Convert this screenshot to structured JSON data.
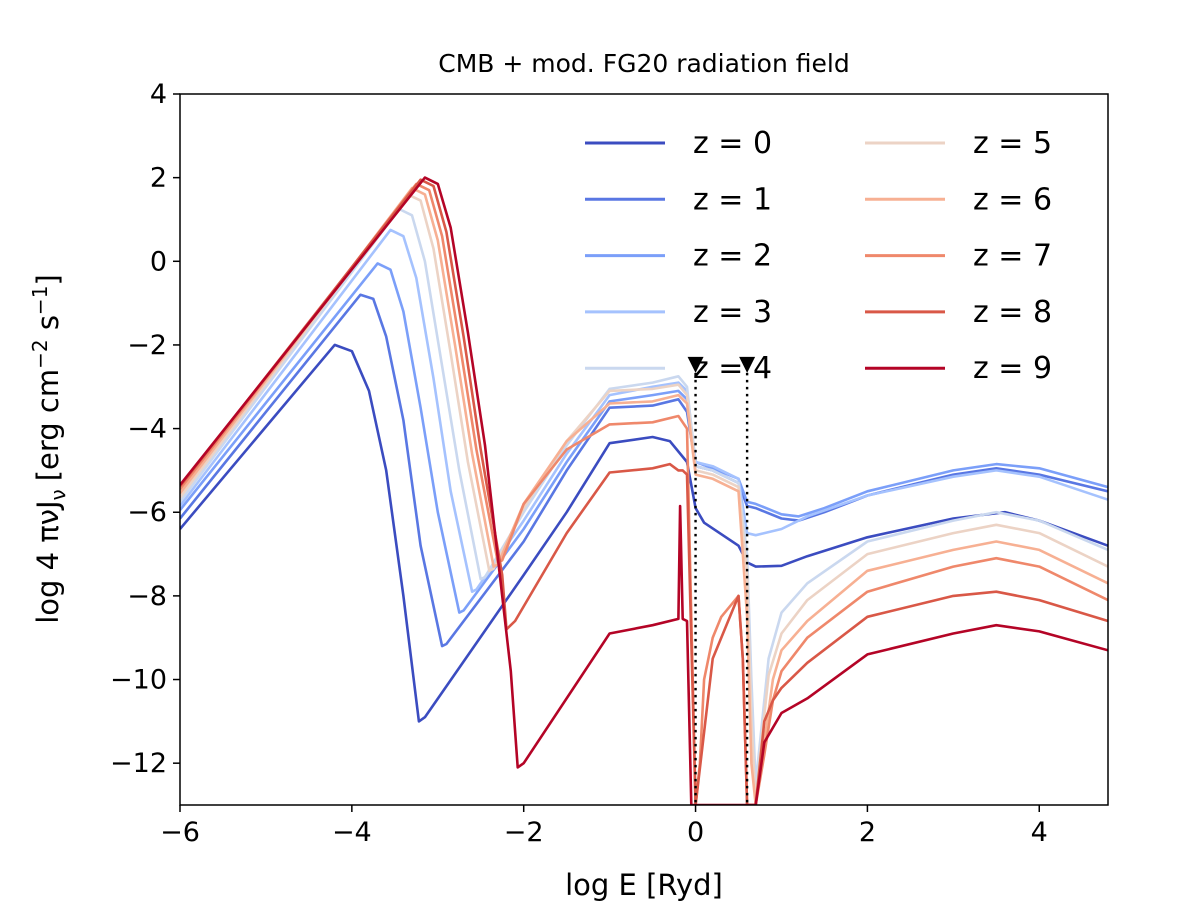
{
  "chart_data": {
    "type": "line",
    "title": "CMB + mod. FG20 radiation field",
    "xlabel": "log E [Ryd]",
    "ylabel": "log 4 πνJ",
    "ylabel_sub": "ν",
    "ylabel_units": "[erg cm",
    "ylabel_exp1": "−2",
    "ylabel_mid": " s",
    "ylabel_exp2": "−1",
    "ylabel_close": "]",
    "xlim": [
      -6,
      4.8
    ],
    "ylim": [
      -13,
      4
    ],
    "xticks": [
      -6,
      -4,
      -2,
      0,
      2,
      4
    ],
    "xtick_labels": [
      "−6",
      "−4",
      "−2",
      "0",
      "2",
      "4"
    ],
    "yticks": [
      4,
      2,
      0,
      -2,
      -4,
      -6,
      -8,
      -10,
      -12
    ],
    "ytick_labels": [
      "4",
      "2",
      "0",
      "−2",
      "−4",
      "−6",
      "−8",
      "−10",
      "−12"
    ],
    "markers": {
      "x": [
        0,
        0.6
      ],
      "y": -2.5,
      "style": "dotted"
    },
    "legend": {
      "location": "upper right",
      "columns": 2
    },
    "series": [
      {
        "name": "z = 0",
        "color": "#3b4cc0",
        "points": [
          [
            -6,
            -6.4
          ],
          [
            -4.2,
            -2.0
          ],
          [
            -4.0,
            -2.15
          ],
          [
            -3.8,
            -3.1
          ],
          [
            -3.6,
            -5.0
          ],
          [
            -3.4,
            -8.0
          ],
          [
            -3.22,
            -11.0
          ],
          [
            -3.15,
            -10.9
          ],
          [
            -2.0,
            -7.5
          ],
          [
            -1.5,
            -6.0
          ],
          [
            -1.0,
            -4.35
          ],
          [
            -0.5,
            -4.2
          ],
          [
            -0.3,
            -4.3
          ],
          [
            -0.1,
            -4.8
          ],
          [
            0.0,
            -5.9
          ],
          [
            0.1,
            -6.25
          ],
          [
            0.5,
            -6.8
          ],
          [
            0.6,
            -7.2
          ],
          [
            0.7,
            -7.3
          ],
          [
            1.0,
            -7.28
          ],
          [
            1.3,
            -7.05
          ],
          [
            2.0,
            -6.6
          ],
          [
            3.0,
            -6.15
          ],
          [
            3.6,
            -6.0
          ],
          [
            4.0,
            -6.2
          ],
          [
            4.8,
            -6.8
          ]
        ]
      },
      {
        "name": "z = 1",
        "color": "#5977e3",
        "points": [
          [
            -6,
            -6.15
          ],
          [
            -3.9,
            -0.8
          ],
          [
            -3.75,
            -0.9
          ],
          [
            -3.6,
            -1.8
          ],
          [
            -3.4,
            -3.8
          ],
          [
            -3.2,
            -6.8
          ],
          [
            -2.95,
            -9.2
          ],
          [
            -2.9,
            -9.15
          ],
          [
            -2.0,
            -6.7
          ],
          [
            -1.5,
            -5.0
          ],
          [
            -1.0,
            -3.5
          ],
          [
            -0.5,
            -3.45
          ],
          [
            -0.2,
            -3.3
          ],
          [
            -0.1,
            -3.6
          ],
          [
            0.0,
            -4.9
          ],
          [
            0.2,
            -5.0
          ],
          [
            0.5,
            -5.3
          ],
          [
            0.6,
            -5.85
          ],
          [
            0.7,
            -5.9
          ],
          [
            1.0,
            -6.15
          ],
          [
            1.2,
            -6.2
          ],
          [
            1.5,
            -6.0
          ],
          [
            2.0,
            -5.6
          ],
          [
            3.0,
            -5.1
          ],
          [
            3.5,
            -4.95
          ],
          [
            4.0,
            -5.1
          ],
          [
            4.8,
            -5.5
          ]
        ]
      },
      {
        "name": "z = 2",
        "color": "#7b9ff9",
        "points": [
          [
            -6,
            -5.95
          ],
          [
            -3.7,
            -0.05
          ],
          [
            -3.55,
            -0.2
          ],
          [
            -3.4,
            -1.2
          ],
          [
            -3.2,
            -3.5
          ],
          [
            -3.0,
            -6.0
          ],
          [
            -2.75,
            -8.4
          ],
          [
            -2.7,
            -8.35
          ],
          [
            -2.0,
            -6.4
          ],
          [
            -1.5,
            -4.8
          ],
          [
            -1.0,
            -3.35
          ],
          [
            -0.5,
            -3.2
          ],
          [
            -0.2,
            -3.1
          ],
          [
            -0.1,
            -3.3
          ],
          [
            0.0,
            -4.8
          ],
          [
            0.2,
            -4.95
          ],
          [
            0.5,
            -5.2
          ],
          [
            0.6,
            -5.75
          ],
          [
            0.7,
            -5.8
          ],
          [
            1.0,
            -6.05
          ],
          [
            1.2,
            -6.1
          ],
          [
            1.5,
            -5.9
          ],
          [
            2.0,
            -5.5
          ],
          [
            3.0,
            -5.0
          ],
          [
            3.5,
            -4.85
          ],
          [
            4.0,
            -4.95
          ],
          [
            4.8,
            -5.4
          ]
        ]
      },
      {
        "name": "z = 3",
        "color": "#a5c2fe",
        "points": [
          [
            -6,
            -5.85
          ],
          [
            -3.55,
            0.75
          ],
          [
            -3.4,
            0.6
          ],
          [
            -3.25,
            -0.4
          ],
          [
            -3.05,
            -2.8
          ],
          [
            -2.85,
            -5.5
          ],
          [
            -2.6,
            -7.9
          ],
          [
            -2.55,
            -7.85
          ],
          [
            -2.0,
            -6.2
          ],
          [
            -1.5,
            -4.6
          ],
          [
            -1.0,
            -3.2
          ],
          [
            -0.5,
            -3.0
          ],
          [
            -0.2,
            -2.9
          ],
          [
            -0.1,
            -3.1
          ],
          [
            0.0,
            -4.8
          ],
          [
            0.2,
            -4.9
          ],
          [
            0.5,
            -5.2
          ],
          [
            0.6,
            -6.5
          ],
          [
            0.7,
            -6.55
          ],
          [
            1.0,
            -6.4
          ],
          [
            1.3,
            -6.1
          ],
          [
            2.0,
            -5.6
          ],
          [
            3.0,
            -5.15
          ],
          [
            3.5,
            -5.0
          ],
          [
            4.0,
            -5.15
          ],
          [
            4.8,
            -5.7
          ]
        ]
      },
      {
        "name": "z = 4",
        "color": "#cad8ef",
        "points": [
          [
            -6,
            -5.75
          ],
          [
            -3.45,
            1.25
          ],
          [
            -3.3,
            1.1
          ],
          [
            -3.15,
            0.0
          ],
          [
            -2.95,
            -2.5
          ],
          [
            -2.75,
            -5.0
          ],
          [
            -2.5,
            -7.6
          ],
          [
            -2.45,
            -7.55
          ],
          [
            -2.0,
            -6.0
          ],
          [
            -1.5,
            -4.4
          ],
          [
            -1.0,
            -3.05
          ],
          [
            -0.5,
            -2.9
          ],
          [
            -0.2,
            -2.75
          ],
          [
            -0.1,
            -3.0
          ],
          [
            0.0,
            -4.9
          ],
          [
            0.2,
            -5.0
          ],
          [
            0.5,
            -5.3
          ],
          [
            0.6,
            -7.0
          ],
          [
            0.65,
            -10.0
          ],
          [
            0.7,
            -12.5
          ],
          [
            0.75,
            -11.5
          ],
          [
            0.85,
            -9.5
          ],
          [
            1.0,
            -8.4
          ],
          [
            1.3,
            -7.7
          ],
          [
            2.0,
            -6.7
          ],
          [
            3.0,
            -6.2
          ],
          [
            3.5,
            -6.0
          ],
          [
            4.0,
            -6.2
          ],
          [
            4.8,
            -6.9
          ]
        ]
      },
      {
        "name": "z = 5",
        "color": "#ecd3c5",
        "points": [
          [
            -6,
            -5.65
          ],
          [
            -3.35,
            1.6
          ],
          [
            -3.2,
            1.45
          ],
          [
            -3.05,
            0.3
          ],
          [
            -2.85,
            -2.2
          ],
          [
            -2.65,
            -4.8
          ],
          [
            -2.4,
            -7.4
          ],
          [
            -2.35,
            -7.35
          ],
          [
            -2.0,
            -5.9
          ],
          [
            -1.5,
            -4.3
          ],
          [
            -1.0,
            -3.1
          ],
          [
            -0.5,
            -3.05
          ],
          [
            -0.2,
            -2.95
          ],
          [
            -0.1,
            -3.2
          ],
          [
            0.0,
            -5.0
          ],
          [
            0.2,
            -5.1
          ],
          [
            0.5,
            -5.4
          ],
          [
            0.6,
            -7.5
          ],
          [
            0.65,
            -11.0
          ],
          [
            0.7,
            -13.0
          ],
          [
            0.75,
            -11.8
          ],
          [
            0.85,
            -9.9
          ],
          [
            1.0,
            -8.9
          ],
          [
            1.3,
            -8.1
          ],
          [
            2.0,
            -7.0
          ],
          [
            3.0,
            -6.5
          ],
          [
            3.5,
            -6.3
          ],
          [
            4.0,
            -6.5
          ],
          [
            4.8,
            -7.3
          ]
        ]
      },
      {
        "name": "z = 6",
        "color": "#f7b093",
        "points": [
          [
            -6,
            -5.55
          ],
          [
            -3.3,
            1.75
          ],
          [
            -3.15,
            1.6
          ],
          [
            -3.0,
            0.5
          ],
          [
            -2.8,
            -2.0
          ],
          [
            -2.6,
            -4.6
          ],
          [
            -2.35,
            -7.3
          ],
          [
            -2.3,
            -7.25
          ],
          [
            -2.0,
            -5.8
          ],
          [
            -1.5,
            -4.3
          ],
          [
            -1.0,
            -3.4
          ],
          [
            -0.5,
            -3.35
          ],
          [
            -0.2,
            -3.2
          ],
          [
            -0.1,
            -3.4
          ],
          [
            0.0,
            -5.1
          ],
          [
            0.2,
            -5.2
          ],
          [
            0.5,
            -5.5
          ],
          [
            0.6,
            -8.5
          ],
          [
            0.65,
            -12.0
          ],
          [
            0.7,
            -13.0
          ],
          [
            0.8,
            -11.5
          ],
          [
            0.9,
            -10.0
          ],
          [
            1.0,
            -9.3
          ],
          [
            1.3,
            -8.6
          ],
          [
            2.0,
            -7.4
          ],
          [
            3.0,
            -6.9
          ],
          [
            3.5,
            -6.7
          ],
          [
            4.0,
            -6.9
          ],
          [
            4.8,
            -7.7
          ]
        ]
      },
      {
        "name": "z = 7",
        "color": "#ef886b",
        "points": [
          [
            -6,
            -5.45
          ],
          [
            -3.25,
            1.85
          ],
          [
            -3.1,
            1.7
          ],
          [
            -2.95,
            0.6
          ],
          [
            -2.75,
            -1.9
          ],
          [
            -2.55,
            -4.5
          ],
          [
            -2.3,
            -7.2
          ],
          [
            -2.25,
            -7.15
          ],
          [
            -2.0,
            -5.8
          ],
          [
            -1.5,
            -4.5
          ],
          [
            -1.0,
            -3.9
          ],
          [
            -0.5,
            -3.85
          ],
          [
            -0.2,
            -3.7
          ],
          [
            -0.1,
            -4.0
          ],
          [
            0.0,
            -13.0
          ],
          [
            0.05,
            -12.0
          ],
          [
            0.1,
            -10.0
          ],
          [
            0.2,
            -9.0
          ],
          [
            0.3,
            -8.5
          ],
          [
            0.5,
            -8.0
          ],
          [
            0.55,
            -9.5
          ],
          [
            0.6,
            -13.0
          ],
          [
            0.7,
            -13.0
          ],
          [
            0.8,
            -11.8
          ],
          [
            0.9,
            -10.5
          ],
          [
            1.0,
            -9.8
          ],
          [
            1.3,
            -9.0
          ],
          [
            2.0,
            -7.9
          ],
          [
            3.0,
            -7.3
          ],
          [
            3.5,
            -7.1
          ],
          [
            4.0,
            -7.3
          ],
          [
            4.8,
            -8.1
          ]
        ]
      },
      {
        "name": "z = 8",
        "color": "#d95847",
        "points": [
          [
            -6,
            -5.38
          ],
          [
            -3.2,
            1.95
          ],
          [
            -3.05,
            1.8
          ],
          [
            -2.9,
            0.7
          ],
          [
            -2.7,
            -1.8
          ],
          [
            -2.5,
            -4.5
          ],
          [
            -2.25,
            -7.5
          ],
          [
            -2.2,
            -8.8
          ],
          [
            -2.1,
            -8.6
          ],
          [
            -1.5,
            -6.5
          ],
          [
            -1.0,
            -5.05
          ],
          [
            -0.5,
            -4.95
          ],
          [
            -0.3,
            -4.85
          ],
          [
            -0.2,
            -5.0
          ],
          [
            -0.15,
            -5.0
          ],
          [
            -0.1,
            -5.1
          ],
          [
            0.0,
            -13.0
          ],
          [
            0.2,
            -9.5
          ],
          [
            0.4,
            -8.5
          ],
          [
            0.5,
            -8.0
          ],
          [
            0.55,
            -9.5
          ],
          [
            0.6,
            -13.0
          ],
          [
            0.7,
            -13.0
          ],
          [
            0.8,
            -11.0
          ],
          [
            0.9,
            -10.5
          ],
          [
            1.0,
            -10.2
          ],
          [
            1.3,
            -9.6
          ],
          [
            2.0,
            -8.5
          ],
          [
            3.0,
            -8.0
          ],
          [
            3.5,
            -7.9
          ],
          [
            4.0,
            -8.1
          ],
          [
            4.8,
            -8.6
          ]
        ]
      },
      {
        "name": "z = 9",
        "color": "#b40426",
        "points": [
          [
            -6,
            -5.35
          ],
          [
            -3.15,
            2.0
          ],
          [
            -3.0,
            1.85
          ],
          [
            -2.85,
            0.8
          ],
          [
            -2.65,
            -1.7
          ],
          [
            -2.45,
            -4.4
          ],
          [
            -2.25,
            -8.0
          ],
          [
            -2.15,
            -9.8
          ],
          [
            -2.07,
            -12.1
          ],
          [
            -2.0,
            -12.0
          ],
          [
            -1.0,
            -8.9
          ],
          [
            -0.5,
            -8.7
          ],
          [
            -0.2,
            -8.55
          ],
          [
            -0.18,
            -5.85
          ],
          [
            -0.15,
            -8.55
          ],
          [
            -0.1,
            -8.6
          ],
          [
            -0.05,
            -13.0
          ],
          [
            0.7,
            -13.0
          ],
          [
            0.8,
            -11.5
          ],
          [
            1.0,
            -10.8
          ],
          [
            1.3,
            -10.45
          ],
          [
            2.0,
            -9.4
          ],
          [
            3.0,
            -8.9
          ],
          [
            3.5,
            -8.7
          ],
          [
            4.0,
            -8.85
          ],
          [
            4.8,
            -9.3
          ]
        ]
      }
    ]
  }
}
